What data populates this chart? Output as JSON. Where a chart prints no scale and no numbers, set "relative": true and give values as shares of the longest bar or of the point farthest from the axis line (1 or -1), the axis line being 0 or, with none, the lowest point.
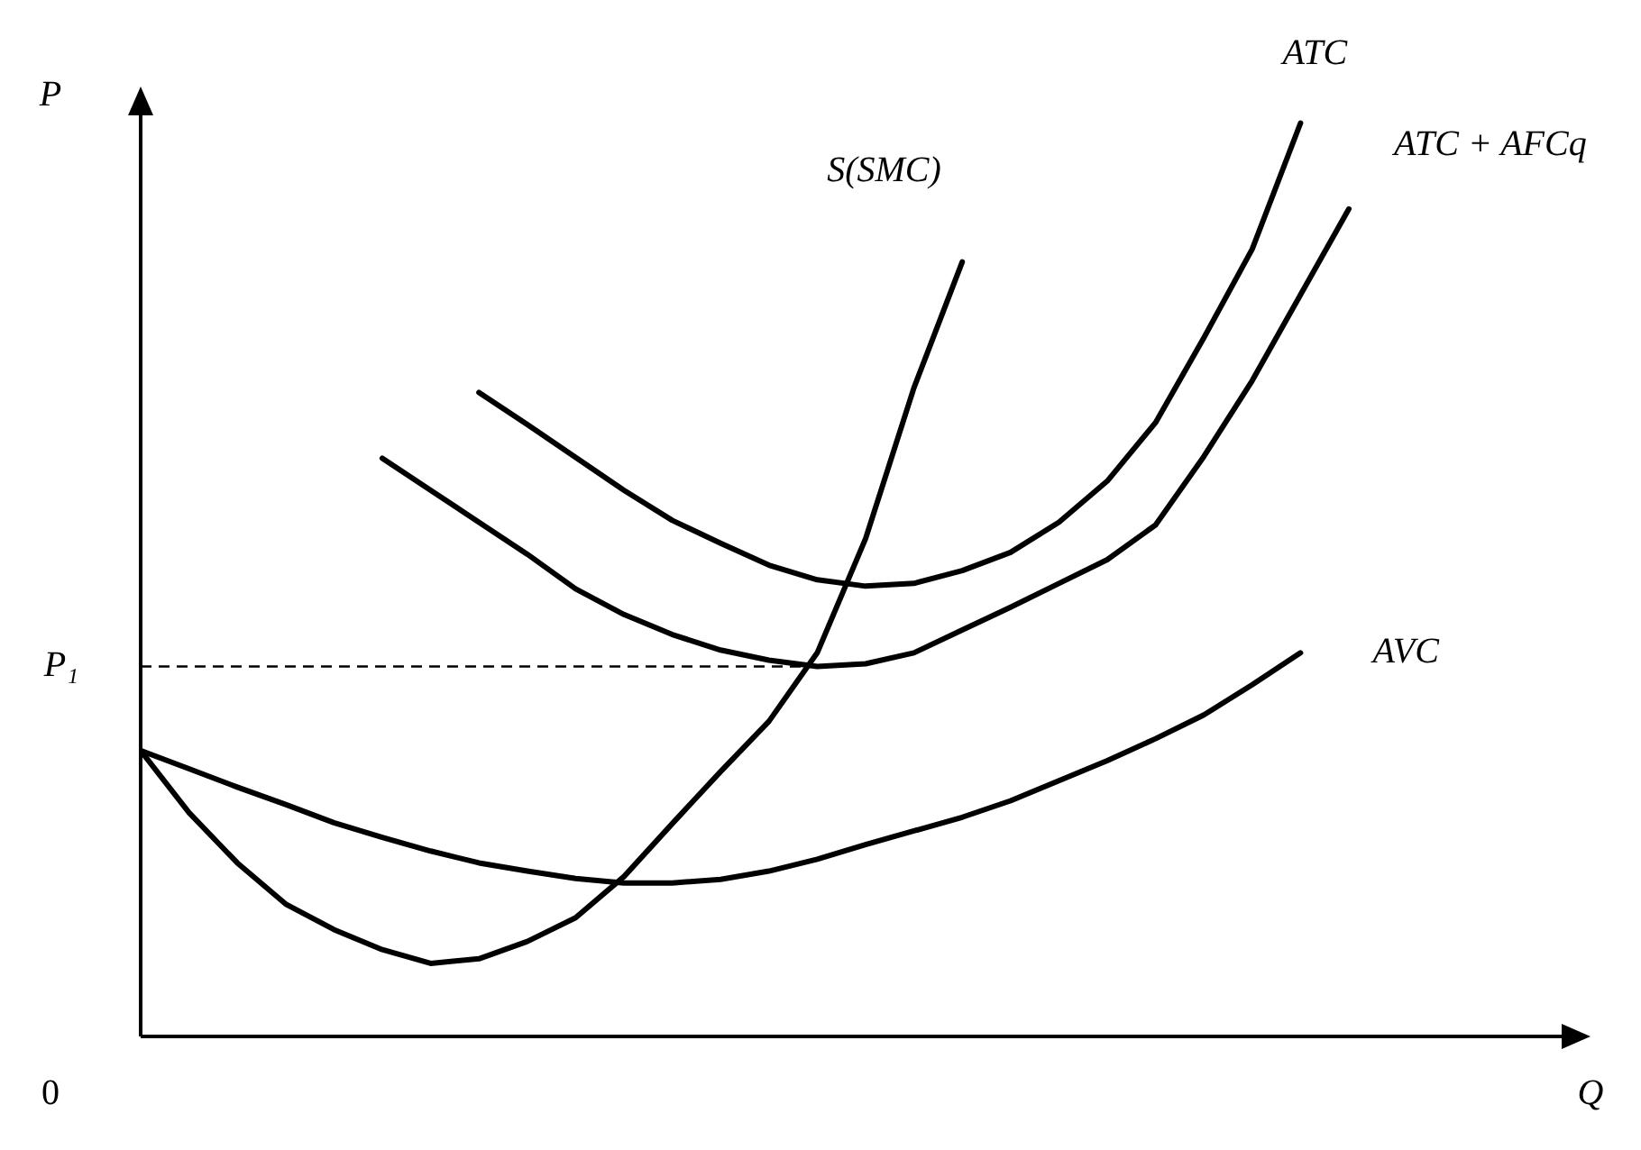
{
  "chart_data": {
    "type": "line",
    "relative": true,
    "ylabel": "P",
    "annotations": [
      "0",
      "Q"
    ],
    "categories": [
      null,
      null,
      null,
      null,
      null,
      null,
      null,
      null,
      null,
      null,
      null,
      null,
      null,
      null,
      null,
      null,
      null,
      null,
      null,
      null,
      null,
      null,
      null,
      null,
      null,
      null
    ],
    "series": [
      {
        "name": "S(SMC)",
        "color": "#000000",
        "values": [
          0.313,
          0.245,
          0.19,
          0.145,
          0.117,
          0.095,
          0.08,
          0.085,
          0.104,
          0.13,
          0.175,
          0.233,
          0.29,
          0.345,
          0.42,
          0.545,
          0.71,
          0.848,
          null,
          null,
          null,
          null,
          null,
          null,
          null,
          null
        ]
      },
      {
        "name": "ATC",
        "color": "#000000",
        "values": [
          null,
          null,
          null,
          null,
          null,
          null,
          null,
          0.705,
          0.67,
          0.634,
          0.598,
          0.565,
          0.54,
          0.516,
          0.5,
          0.493,
          0.496,
          0.51,
          0.53,
          0.563,
          0.608,
          0.672,
          0.765,
          0.862,
          1,
          null
        ]
      },
      {
        "name": "ATC + AFCq",
        "color": "#000000",
        "values": [
          null,
          null,
          null,
          null,
          null,
          0.633,
          0.598,
          0.563,
          0.528,
          0.49,
          0.462,
          0.44,
          0.423,
          0.412,
          0.405,
          0.408,
          0.42,
          0.445,
          0.47,
          0.496,
          0.522,
          0.56,
          0.635,
          0.718,
          0.812,
          0.906
        ]
      },
      {
        "name": "AVC",
        "color": "#000000",
        "values": [
          0.313,
          0.293,
          0.273,
          0.254,
          0.234,
          0.218,
          0.203,
          0.19,
          0.181,
          0.173,
          0.168,
          0.168,
          0.172,
          0.181,
          0.194,
          0.21,
          0.225,
          0.24,
          0.258,
          0.28,
          0.302,
          0.326,
          0.352,
          0.385,
          0.42,
          null
        ]
      }
    ],
    "ref_lines": [
      {
        "axis": "y",
        "value": 0.405,
        "label": "P₁",
        "line_style": "dashed"
      }
    ],
    "line_style": "solid",
    "marker": "none",
    "legend": false
  }
}
